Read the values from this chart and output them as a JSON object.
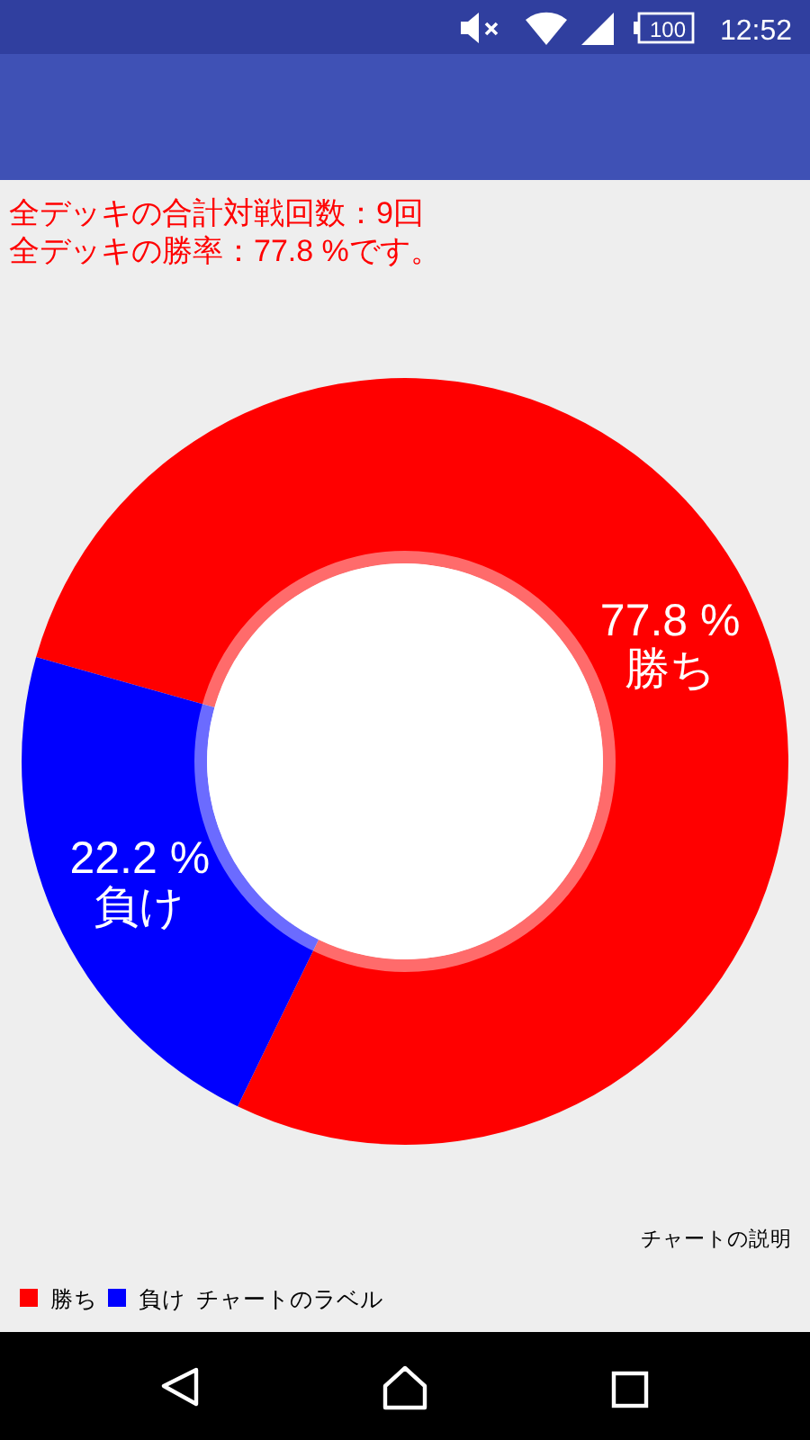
{
  "chart_data": {
    "type": "donut",
    "title": "全デッキの合計対戦回数：9回",
    "subtitle": "全デッキの勝率：77.8 %です。",
    "categories": [
      "勝ち",
      "負け"
    ],
    "values": [
      77.8,
      22.2
    ],
    "colors": [
      "#ff0000",
      "#0000ff"
    ],
    "value_labels": [
      "77.8 %",
      "22.2 %"
    ],
    "legend": "bottom left",
    "legend_title": "チャートのラベル",
    "annotations": [
      "チャートの説明",
      "100",
      "12:52"
    ]
  }
}
